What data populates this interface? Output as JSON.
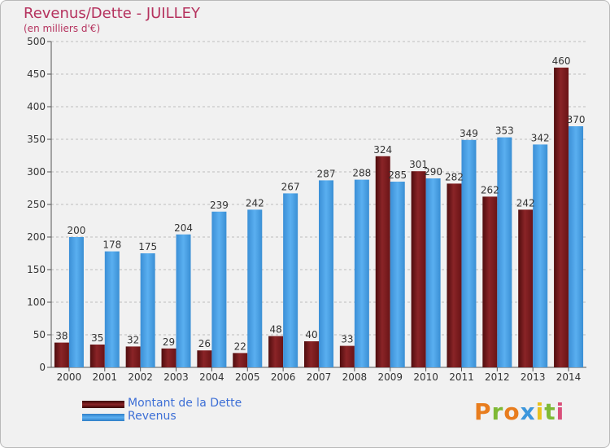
{
  "title": "Revenus/Dette - JUILLEY",
  "subtitle": "(en milliers d'€)",
  "colors": {
    "title": "#b5325e",
    "dette": "#7a1a1c",
    "revenus": "#3d97dc",
    "legend_text": "#3d6fd6",
    "grid": "#bdbdbd"
  },
  "legend": {
    "dette_label": "Montant de la Dette",
    "revenus_label": "Revenus"
  },
  "logo": "Proxiti",
  "chart_data": {
    "type": "bar",
    "categories": [
      "2000",
      "2001",
      "2002",
      "2003",
      "2004",
      "2005",
      "2006",
      "2007",
      "2008",
      "2009",
      "2010",
      "2011",
      "2012",
      "2013",
      "2014"
    ],
    "series": [
      {
        "name": "Montant de la Dette",
        "values": [
          38,
          35,
          32,
          29,
          26,
          22,
          48,
          40,
          33,
          324,
          301,
          282,
          262,
          242,
          460
        ]
      },
      {
        "name": "Revenus",
        "values": [
          200,
          178,
          175,
          204,
          239,
          242,
          267,
          287,
          288,
          285,
          290,
          349,
          353,
          342,
          370
        ]
      }
    ],
    "y_ticks": [
      0,
      50,
      100,
      150,
      200,
      250,
      300,
      350,
      400,
      450,
      500
    ],
    "ylim": [
      0,
      500
    ],
    "grid": true,
    "legend_position": "bottom-left"
  }
}
